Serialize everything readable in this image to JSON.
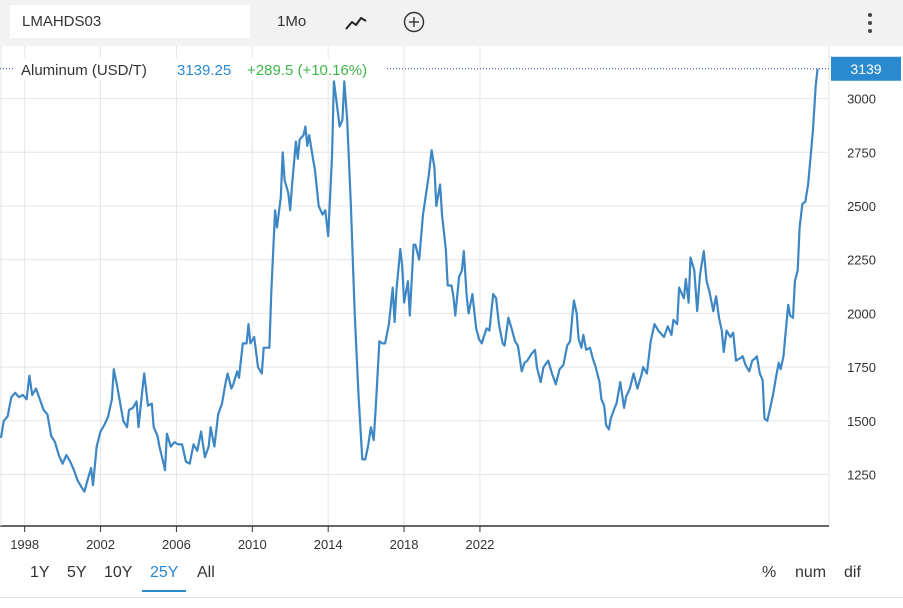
{
  "toolbar": {
    "symbol": "LMAHDS03",
    "interval": "1Mo",
    "chart_style_icon": "line-chart-icon",
    "compare_icon": "plus-circle-icon",
    "more_icon": "vertical-dots-icon"
  },
  "legend": {
    "name": "Aluminum (USD/T)",
    "value": "3139.25",
    "change": "+289.5 (+10.16%)",
    "value_color": "#2a8ad0",
    "change_color": "#3fb64b"
  },
  "last_price_label": "3139",
  "ranges": [
    "1Y",
    "5Y",
    "10Y",
    "25Y",
    "All"
  ],
  "active_range": "25Y",
  "modes": [
    "%",
    "num",
    "dif"
  ],
  "chart_data": {
    "type": "line",
    "series": [
      {
        "name": "Aluminum (USD/T)",
        "color": "#3d87c4",
        "points": [
          [
            1996.75,
            1420
          ],
          [
            1996.9,
            1500
          ],
          [
            1997.1,
            1520
          ],
          [
            1997.3,
            1610
          ],
          [
            1997.5,
            1630
          ],
          [
            1997.7,
            1610
          ],
          [
            1997.9,
            1620
          ],
          [
            1998.1,
            1600
          ],
          [
            1998.25,
            1710
          ],
          [
            1998.4,
            1620
          ],
          [
            1998.6,
            1650
          ],
          [
            1998.8,
            1600
          ],
          [
            1999.0,
            1550
          ],
          [
            1999.2,
            1530
          ],
          [
            1999.4,
            1430
          ],
          [
            1999.6,
            1400
          ],
          [
            1999.8,
            1340
          ],
          [
            2000.0,
            1300
          ],
          [
            2000.2,
            1340
          ],
          [
            2000.4,
            1310
          ],
          [
            2000.6,
            1270
          ],
          [
            2000.8,
            1220
          ],
          [
            2001.0,
            1190
          ],
          [
            2001.15,
            1170
          ],
          [
            2001.3,
            1220
          ],
          [
            2001.5,
            1280
          ],
          [
            2001.6,
            1200
          ],
          [
            2001.8,
            1380
          ],
          [
            2002.0,
            1450
          ],
          [
            2002.2,
            1480
          ],
          [
            2002.4,
            1520
          ],
          [
            2002.6,
            1600
          ],
          [
            2002.7,
            1740
          ],
          [
            2002.9,
            1650
          ],
          [
            2003.0,
            1600
          ],
          [
            2003.2,
            1500
          ],
          [
            2003.4,
            1470
          ],
          [
            2003.5,
            1550
          ],
          [
            2003.7,
            1560
          ],
          [
            2003.9,
            1590
          ],
          [
            2004.0,
            1470
          ],
          [
            2004.2,
            1640
          ],
          [
            2004.3,
            1720
          ],
          [
            2004.5,
            1570
          ],
          [
            2004.7,
            1580
          ],
          [
            2004.8,
            1470
          ],
          [
            2005.0,
            1430
          ],
          [
            2005.1,
            1380
          ],
          [
            2005.3,
            1310
          ],
          [
            2005.4,
            1270
          ],
          [
            2005.5,
            1440
          ],
          [
            2005.7,
            1380
          ],
          [
            2005.9,
            1400
          ],
          [
            2006.1,
            1390
          ],
          [
            2006.3,
            1390
          ],
          [
            2006.5,
            1310
          ],
          [
            2006.7,
            1300
          ],
          [
            2006.9,
            1390
          ],
          [
            2007.1,
            1360
          ],
          [
            2007.3,
            1450
          ],
          [
            2007.5,
            1330
          ],
          [
            2007.7,
            1380
          ],
          [
            2007.8,
            1470
          ],
          [
            2008.0,
            1380
          ],
          [
            2008.2,
            1530
          ],
          [
            2008.4,
            1580
          ],
          [
            2008.6,
            1680
          ],
          [
            2008.7,
            1720
          ],
          [
            2008.9,
            1650
          ],
          [
            2009.0,
            1670
          ],
          [
            2009.2,
            1730
          ],
          [
            2009.3,
            1700
          ],
          [
            2009.5,
            1860
          ],
          [
            2009.7,
            1860
          ],
          [
            2009.8,
            1950
          ],
          [
            2009.9,
            1860
          ],
          [
            2010.1,
            1890
          ],
          [
            2010.3,
            1750
          ],
          [
            2010.5,
            1720
          ],
          [
            2010.6,
            1840
          ],
          [
            2010.9,
            1840
          ],
          [
            2011.0,
            2100
          ],
          [
            2011.2,
            2480
          ],
          [
            2011.3,
            2400
          ],
          [
            2011.5,
            2540
          ],
          [
            2011.6,
            2750
          ],
          [
            2011.7,
            2620
          ],
          [
            2011.9,
            2560
          ],
          [
            2012.0,
            2480
          ],
          [
            2012.1,
            2600
          ],
          [
            2012.3,
            2800
          ],
          [
            2012.4,
            2720
          ],
          [
            2012.5,
            2810
          ],
          [
            2012.7,
            2830
          ],
          [
            2012.8,
            2870
          ],
          [
            2012.9,
            2780
          ],
          [
            2013.0,
            2830
          ],
          [
            2013.2,
            2720
          ],
          [
            2013.3,
            2670
          ],
          [
            2013.5,
            2500
          ],
          [
            2013.7,
            2460
          ],
          [
            2013.85,
            2480
          ],
          [
            2014.0,
            2360
          ],
          [
            2014.2,
            2730
          ],
          [
            2014.3,
            3080
          ],
          [
            2014.45,
            2980
          ],
          [
            2014.6,
            2870
          ],
          [
            2014.75,
            2900
          ],
          [
            2014.85,
            3080
          ],
          [
            2015.0,
            2900
          ],
          [
            2015.2,
            2500
          ],
          [
            2015.4,
            2000
          ],
          [
            2015.6,
            1620
          ],
          [
            2015.8,
            1320
          ],
          [
            2015.95,
            1320
          ],
          [
            2016.1,
            1380
          ],
          [
            2016.25,
            1470
          ],
          [
            2016.4,
            1410
          ],
          [
            2016.5,
            1550
          ],
          [
            2016.7,
            1870
          ],
          [
            2016.85,
            1860
          ],
          [
            2017.0,
            1860
          ],
          [
            2017.2,
            1950
          ],
          [
            2017.4,
            2120
          ],
          [
            2017.5,
            1960
          ],
          [
            2017.6,
            2110
          ],
          [
            2017.8,
            2300
          ],
          [
            2017.9,
            2220
          ],
          [
            2018.0,
            2050
          ],
          [
            2018.2,
            2150
          ],
          [
            2018.3,
            1990
          ],
          [
            2018.5,
            2320
          ],
          [
            2018.6,
            2320
          ],
          [
            2018.8,
            2250
          ],
          [
            2019.0,
            2460
          ],
          [
            2019.1,
            2520
          ],
          [
            2019.3,
            2640
          ],
          [
            2019.45,
            2760
          ],
          [
            2019.6,
            2680
          ],
          [
            2019.7,
            2500
          ],
          [
            2019.9,
            2600
          ],
          [
            2020.0,
            2460
          ],
          [
            2020.2,
            2300
          ],
          [
            2020.3,
            2130
          ],
          [
            2020.5,
            2130
          ],
          [
            2020.6,
            2080
          ],
          [
            2020.7,
            1990
          ],
          [
            2020.9,
            2170
          ],
          [
            2021.05,
            2200
          ],
          [
            2021.15,
            2290
          ],
          [
            2021.3,
            2080
          ],
          [
            2021.4,
            2000
          ],
          [
            2021.6,
            2090
          ],
          [
            2021.8,
            1930
          ],
          [
            2021.95,
            1880
          ],
          [
            2022.1,
            1860
          ],
          [
            2022.2,
            1890
          ],
          [
            2022.35,
            1930
          ],
          [
            2022.5,
            1920
          ],
          [
            2022.7,
            2090
          ],
          [
            2022.85,
            2070
          ],
          [
            2023.0,
            1950
          ],
          [
            2023.2,
            1860
          ],
          [
            2023.3,
            1850
          ],
          [
            2023.5,
            1980
          ],
          [
            2023.7,
            1920
          ],
          [
            2023.85,
            1870
          ],
          [
            2024.0,
            1850
          ],
          [
            2024.2,
            1730
          ],
          [
            2024.35,
            1770
          ],
          [
            2024.5,
            1780
          ],
          [
            2024.7,
            1810
          ],
          [
            2024.9,
            1830
          ],
          [
            2025.0,
            1750
          ],
          [
            2025.2,
            1680
          ],
          [
            2025.35,
            1750
          ],
          [
            2025.6,
            1780
          ],
          [
            2025.8,
            1720
          ],
          [
            2026.0,
            1670
          ],
          [
            2026.2,
            1740
          ],
          [
            2026.4,
            1760
          ],
          [
            2026.6,
            1850
          ],
          [
            2026.75,
            1870
          ],
          [
            2026.85,
            1970
          ],
          [
            2026.95,
            2060
          ],
          [
            2027.1,
            2000
          ],
          [
            2027.2,
            1880
          ],
          [
            2027.35,
            1840
          ],
          [
            2027.45,
            1900
          ],
          [
            2027.6,
            1830
          ],
          [
            2027.8,
            1840
          ],
          [
            2027.95,
            1790
          ],
          [
            2028.1,
            1750
          ],
          [
            2028.3,
            1680
          ],
          [
            2028.4,
            1600
          ],
          [
            2028.55,
            1570
          ],
          [
            2028.65,
            1480
          ],
          [
            2028.8,
            1460
          ],
          [
            2028.9,
            1510
          ],
          [
            2029.1,
            1560
          ],
          [
            2029.2,
            1580
          ],
          [
            2029.4,
            1680
          ],
          [
            2029.6,
            1560
          ],
          [
            2029.7,
            1610
          ],
          [
            2029.9,
            1650
          ],
          [
            2030.1,
            1720
          ],
          [
            2030.3,
            1650
          ],
          [
            2030.5,
            1710
          ],
          [
            2030.6,
            1750
          ],
          [
            2030.8,
            1720
          ],
          [
            2031.0,
            1870
          ],
          [
            2031.2,
            1950
          ],
          [
            2031.4,
            1920
          ],
          [
            2031.6,
            1900
          ],
          [
            2031.7,
            1890
          ],
          [
            2031.9,
            1940
          ],
          [
            2032.1,
            1900
          ],
          [
            2032.2,
            1970
          ],
          [
            2032.4,
            1950
          ],
          [
            2032.5,
            2120
          ],
          [
            2032.6,
            2100
          ],
          [
            2032.75,
            2070
          ],
          [
            2032.85,
            2160
          ],
          [
            2033.0,
            2050
          ],
          [
            2033.1,
            2260
          ],
          [
            2033.3,
            2200
          ],
          [
            2033.45,
            2010
          ],
          [
            2033.6,
            2180
          ],
          [
            2033.8,
            2290
          ],
          [
            2033.95,
            2150
          ],
          [
            2034.1,
            2100
          ],
          [
            2034.3,
            2010
          ],
          [
            2034.45,
            2080
          ],
          [
            2034.6,
            1980
          ],
          [
            2034.75,
            1920
          ],
          [
            2034.85,
            1820
          ],
          [
            2035.0,
            1920
          ],
          [
            2035.2,
            1890
          ],
          [
            2035.35,
            1910
          ],
          [
            2035.5,
            1780
          ],
          [
            2035.7,
            1790
          ],
          [
            2035.85,
            1800
          ],
          [
            2036.0,
            1760
          ],
          [
            2036.2,
            1730
          ],
          [
            2036.35,
            1780
          ],
          [
            2036.5,
            1790
          ],
          [
            2036.6,
            1800
          ],
          [
            2036.75,
            1720
          ],
          [
            2036.9,
            1690
          ],
          [
            2037.0,
            1510
          ],
          [
            2037.15,
            1500
          ],
          [
            2037.3,
            1560
          ],
          [
            2037.45,
            1620
          ],
          [
            2037.6,
            1700
          ],
          [
            2037.75,
            1770
          ],
          [
            2037.85,
            1740
          ],
          [
            2038.0,
            1800
          ],
          [
            2038.1,
            1900
          ],
          [
            2038.25,
            2040
          ],
          [
            2038.35,
            1990
          ],
          [
            2038.5,
            1980
          ],
          [
            2038.6,
            2150
          ],
          [
            2038.75,
            2200
          ],
          [
            2038.85,
            2400
          ],
          [
            2039.0,
            2510
          ],
          [
            2039.15,
            2520
          ],
          [
            2039.3,
            2600
          ],
          [
            2039.45,
            2750
          ],
          [
            2039.55,
            2850
          ],
          [
            2039.7,
            3060
          ],
          [
            2039.8,
            3139
          ]
        ]
      }
    ],
    "x_ticks": [
      1998,
      2002,
      2006,
      2010,
      2014,
      2018,
      2022
    ],
    "y_ticks": [
      1250,
      1500,
      1750,
      2000,
      2250,
      2500,
      2750,
      3000
    ],
    "xlim": [
      1996.7,
      2040.4
    ],
    "ylim": [
      1010,
      3245
    ],
    "grid": true,
    "line_color": "#3d87c4",
    "price_tag_color": "#2a8ad0"
  }
}
